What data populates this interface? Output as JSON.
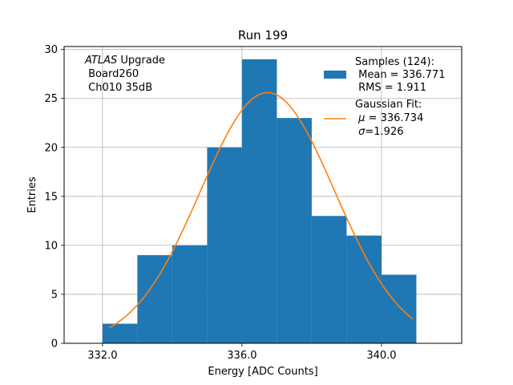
{
  "chart_data": {
    "type": "bar",
    "title": "Run 199",
    "xlabel": "Energy [ADC Counts]",
    "ylabel": "Entries",
    "xlim": [
      330.9,
      342.3
    ],
    "ylim": [
      0,
      30.3
    ],
    "xticks": [
      332.0,
      336.0,
      340.0
    ],
    "xtick_labels": [
      "332.0",
      "336.0",
      "340.0"
    ],
    "yticks": [
      0,
      5,
      10,
      15,
      20,
      25,
      30
    ],
    "ytick_labels": [
      "0",
      "5",
      "10",
      "15",
      "20",
      "25",
      "30"
    ],
    "grid": true,
    "histogram": {
      "bin_edges": [
        332,
        333,
        334,
        335,
        336,
        337,
        338,
        339,
        340,
        341
      ],
      "counts": [
        2,
        9,
        10,
        20,
        29,
        23,
        13,
        11,
        7
      ],
      "color": "#1f77b4"
    },
    "fit": {
      "mu": 336.734,
      "sigma": 1.926,
      "amplitude": 25.6,
      "x_range": [
        332.2,
        340.9
      ],
      "color": "#ff7f0e"
    },
    "annotation": {
      "line1_italic": "ATLAS",
      "line1_rest": " Upgrade",
      "line2": " Board260",
      "line3": " Ch010 35dB"
    },
    "legend": {
      "position": "top-right",
      "samples": {
        "line1": "Samples (124):",
        "line2": " Mean = 336.771",
        "line3": " RMS = 1.911"
      },
      "fit": {
        "line1": "Gaussian Fit:",
        "line2_sym": "μ",
        "line2_rest": " = 336.734",
        "line3_sym": "σ",
        "line3_rest": "=1.926"
      }
    }
  }
}
